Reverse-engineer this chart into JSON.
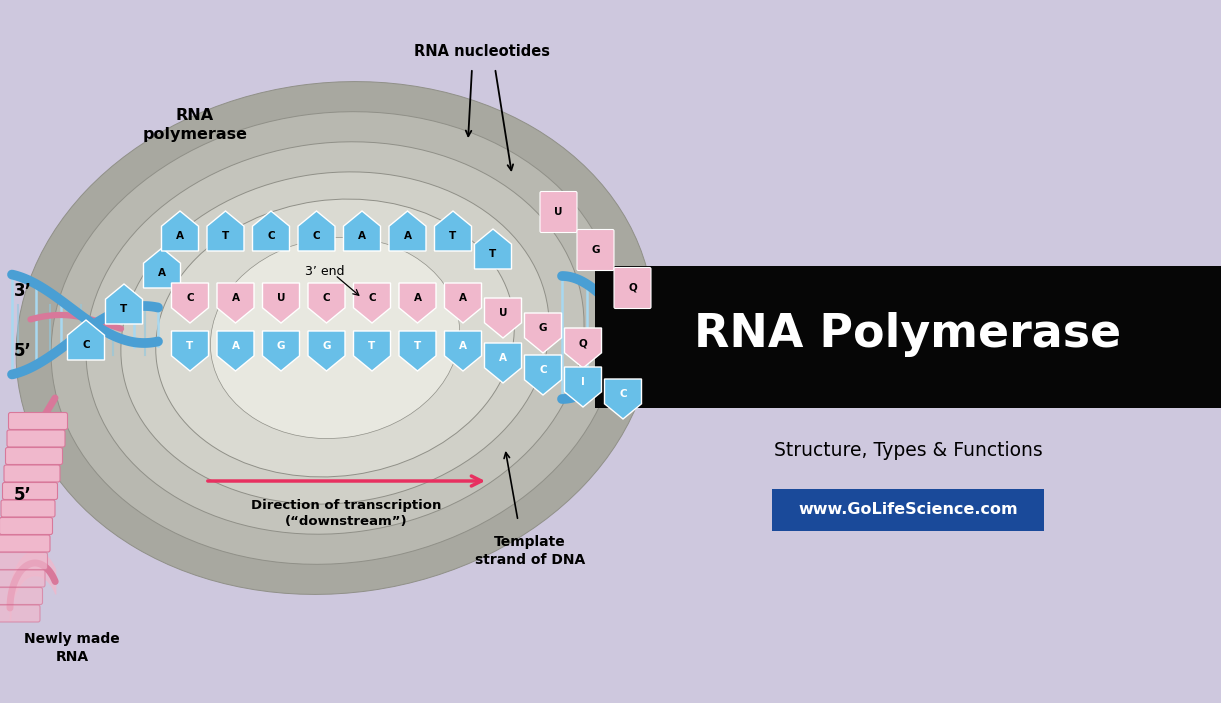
{
  "bg_color": "#cec8de",
  "title": "RNA Polymerase",
  "subtitle": "Structure, Types & Functions",
  "website": "www.GoLifeScience.com",
  "title_bg": "#080808",
  "website_bg": "#1a4a9a",
  "label_rna_pol": "RNA\npolymerase",
  "label_rna_nuc": "RNA nucleotides",
  "label_3prime_end": "3’ end",
  "label_direction": "Direction of transcription\n(“downstream”)",
  "label_template": "Template\nstrand of DNA",
  "label_new_rna": "Newly made\nRNA",
  "label_3prime": "3’",
  "label_5prime_top": "5’",
  "label_5prime_bot": "5’",
  "blue_color": "#68bfe8",
  "blue_dark": "#4a9fd4",
  "blue_light": "#a8d8f0",
  "pink_color": "#f0b8cc",
  "pink_dark": "#d8789a",
  "pink_light": "#f8d8e4",
  "gray1": "#a8a8a0",
  "gray2": "#b8b8b0",
  "gray3": "#c8c8c0",
  "gray4": "#d4d4cc",
  "gray5": "#dcdcd4",
  "gray6": "#e4e4dc",
  "arrow_color": "#e83060"
}
